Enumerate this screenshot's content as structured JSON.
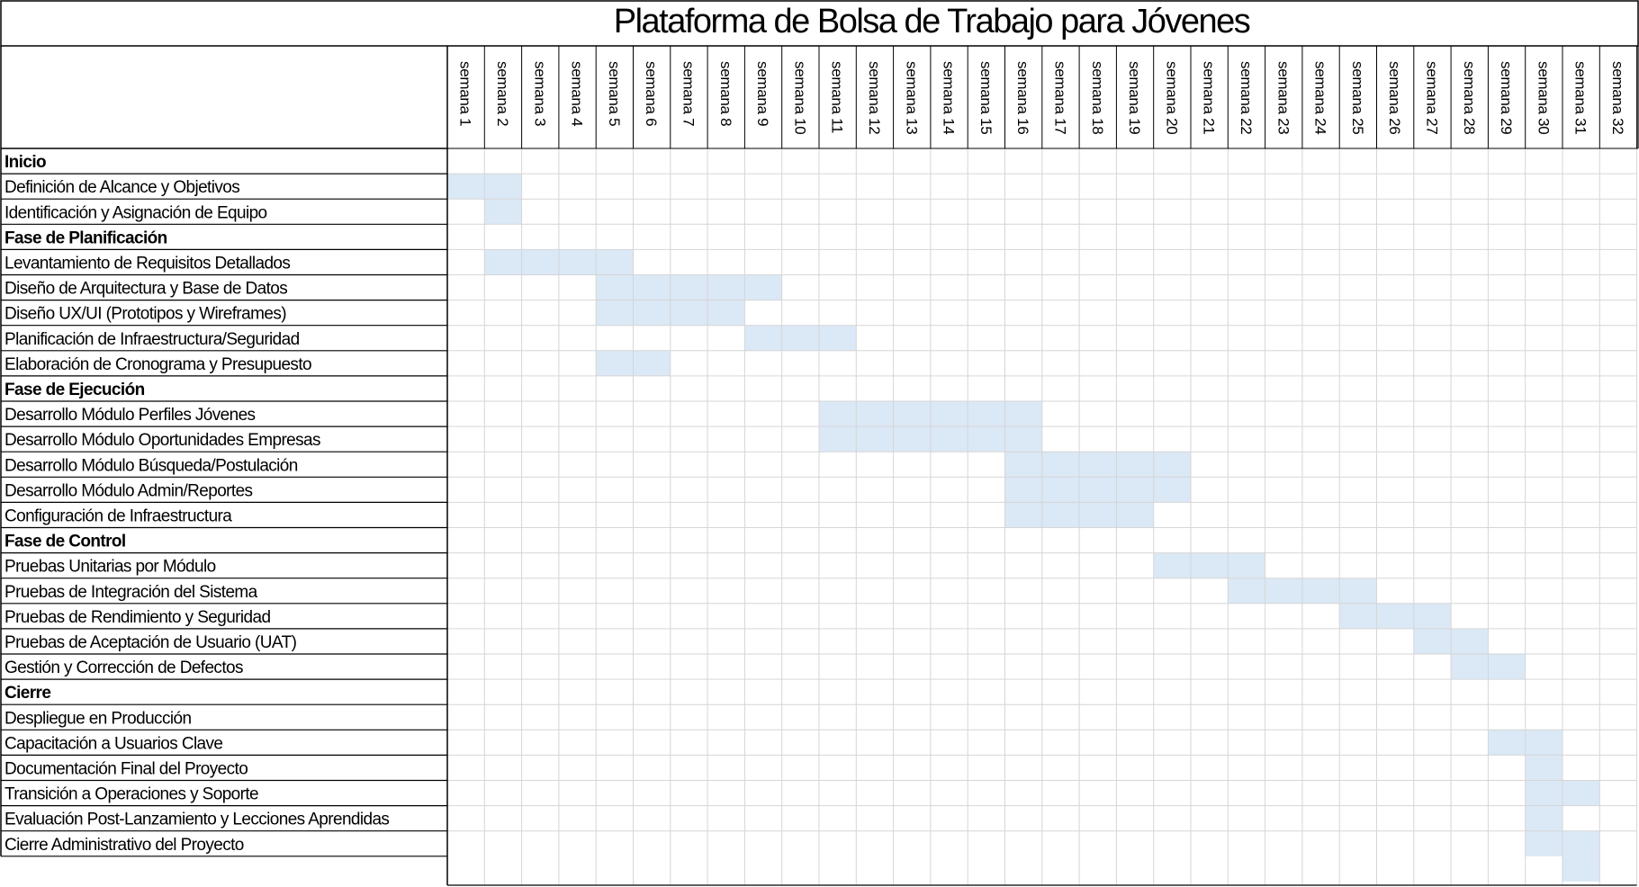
{
  "chart_data": {
    "type": "gantt",
    "title": "Plataforma de Bolsa de Trabajo para Jóvenes",
    "weeks": [
      "semana 1",
      "semana 2",
      "semana 3",
      "semana 4",
      "semana 5",
      "semana 6",
      "semana 7",
      "semana 8",
      "semana 9",
      "semana 10",
      "semana 11",
      "semana 12",
      "semana 13",
      "semana 14",
      "semana 15",
      "semana 16",
      "semana 17",
      "semana 18",
      "semana 19",
      "semana 20",
      "semana 21",
      "semana 22",
      "semana 23",
      "semana 24",
      "semana 25",
      "semana 26",
      "semana 27",
      "semana 28",
      "semana 29",
      "semana 30",
      "semana 31",
      "semana 32"
    ],
    "bar_color": "#dbe8f6",
    "grid": true,
    "rows": [
      {
        "label": "Inicio",
        "phase": true
      },
      {
        "label": "Definición de Alcance y Objetivos",
        "start_week": 1,
        "end_week": 2
      },
      {
        "label": "Identificación y Asignación de Equipo",
        "start_week": 2,
        "end_week": 2
      },
      {
        "label": "Fase de Planificación",
        "phase": true
      },
      {
        "label": "Levantamiento de Requisitos Detallados",
        "start_week": 2,
        "end_week": 5
      },
      {
        "label": "Diseño de Arquitectura y Base de Datos",
        "start_week": 5,
        "end_week": 9
      },
      {
        "label": "Diseño UX/UI (Prototipos y Wireframes)",
        "start_week": 5,
        "end_week": 8
      },
      {
        "label": "Planificación de Infraestructura/Seguridad",
        "start_week": 9,
        "end_week": 11
      },
      {
        "label": "Elaboración de Cronograma y Presupuesto",
        "start_week": 5,
        "end_week": 6
      },
      {
        "label": "Fase de Ejecución",
        "phase": true
      },
      {
        "label": "Desarrollo Módulo Perfiles Jóvenes",
        "start_week": 11,
        "end_week": 16
      },
      {
        "label": "Desarrollo Módulo Oportunidades Empresas",
        "start_week": 11,
        "end_week": 16
      },
      {
        "label": "Desarrollo Módulo Búsqueda/Postulación",
        "start_week": 16,
        "end_week": 20
      },
      {
        "label": "Desarrollo Módulo Admin/Reportes",
        "start_week": 16,
        "end_week": 20
      },
      {
        "label": "Configuración de Infraestructura",
        "start_week": 16,
        "end_week": 19
      },
      {
        "label": "Fase de Control",
        "phase": true
      },
      {
        "label": "Pruebas Unitarias por Módulo",
        "start_week": 20,
        "end_week": 22
      },
      {
        "label": "Pruebas de Integración del Sistema",
        "start_week": 22,
        "end_week": 25
      },
      {
        "label": "Pruebas de Rendimiento y Seguridad",
        "start_week": 25,
        "end_week": 27
      },
      {
        "label": "Pruebas de Aceptación de Usuario (UAT)",
        "start_week": 27,
        "end_week": 28
      },
      {
        "label": "Gestión y Corrección de Defectos",
        "start_week": 28,
        "end_week": 29
      },
      {
        "label": "Cierre",
        "phase": true
      },
      {
        "label": "Despliegue en Producción"
      },
      {
        "label": "Capacitación a Usuarios Clave",
        "start_week": 29,
        "end_week": 30
      },
      {
        "label": "Documentación Final del Proyecto",
        "start_week": 30,
        "end_week": 30
      },
      {
        "label": "Transición a Operaciones y Soporte",
        "start_week": 30,
        "end_week": 31
      },
      {
        "label": "Evaluación Post-Lanzamiento y Lecciones Aprendidas",
        "start_week": 30,
        "end_week": 30
      },
      {
        "label": "Cierre Administrativo del Proyecto",
        "start_week": 30,
        "end_week": 31
      }
    ],
    "trailing_bar": {
      "start_week": 31,
      "end_week": 31
    }
  }
}
